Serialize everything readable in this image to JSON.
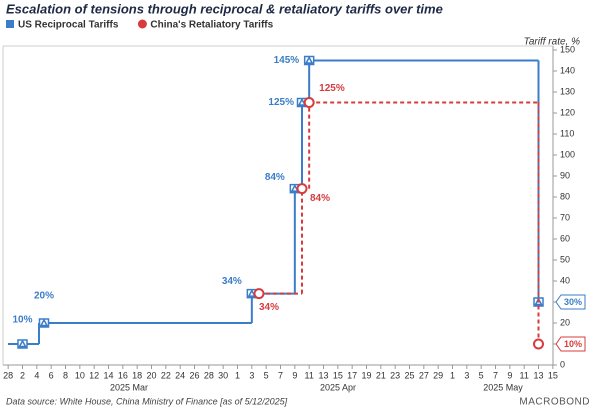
{
  "chart_data": {
    "type": "step",
    "title": "Escalation of tensions through reciprocal & retaliatory tariffs over time",
    "y_axis_label": "Tariff rate, %",
    "source": "Data source: White House, China Ministry of Finance [as of 5/12/2025]",
    "brand": "MACROBOND",
    "month_labels": [
      "2025 Mar",
      "2025 Apr",
      "2025 May"
    ],
    "xlim": [
      "2025-02-27",
      "2025-05-16"
    ],
    "xticks": [
      {
        "value": "2025-02-28",
        "label": "28"
      },
      {
        "value": "2025-03-02",
        "label": "2"
      },
      {
        "value": "2025-03-04",
        "label": "4"
      },
      {
        "value": "2025-03-06",
        "label": "6"
      },
      {
        "value": "2025-03-08",
        "label": "8"
      },
      {
        "value": "2025-03-10",
        "label": "10"
      },
      {
        "value": "2025-03-12",
        "label": "12"
      },
      {
        "value": "2025-03-14",
        "label": "14"
      },
      {
        "value": "2025-03-16",
        "label": "16"
      },
      {
        "value": "2025-03-18",
        "label": "18"
      },
      {
        "value": "2025-03-20",
        "label": "20"
      },
      {
        "value": "2025-03-22",
        "label": "22"
      },
      {
        "value": "2025-03-24",
        "label": "24"
      },
      {
        "value": "2025-03-26",
        "label": "26"
      },
      {
        "value": "2025-03-28",
        "label": "28"
      },
      {
        "value": "2025-03-30",
        "label": "30"
      },
      {
        "value": "2025-04-01",
        "label": "1"
      },
      {
        "value": "2025-04-03",
        "label": "3"
      },
      {
        "value": "2025-04-05",
        "label": "5"
      },
      {
        "value": "2025-04-07",
        "label": "7"
      },
      {
        "value": "2025-04-09",
        "label": "9"
      },
      {
        "value": "2025-04-11",
        "label": "11"
      },
      {
        "value": "2025-04-13",
        "label": "13"
      },
      {
        "value": "2025-04-15",
        "label": "15"
      },
      {
        "value": "2025-04-17",
        "label": "17"
      },
      {
        "value": "2025-04-19",
        "label": "19"
      },
      {
        "value": "2025-04-21",
        "label": "21"
      },
      {
        "value": "2025-04-23",
        "label": "23"
      },
      {
        "value": "2025-04-25",
        "label": "25"
      },
      {
        "value": "2025-04-27",
        "label": "27"
      },
      {
        "value": "2025-04-29",
        "label": "29"
      },
      {
        "value": "2025-05-01",
        "label": "1"
      },
      {
        "value": "2025-05-03",
        "label": "3"
      },
      {
        "value": "2025-05-05",
        "label": "5"
      },
      {
        "value": "2025-05-07",
        "label": "7"
      },
      {
        "value": "2025-05-09",
        "label": "9"
      },
      {
        "value": "2025-05-11",
        "label": "11"
      },
      {
        "value": "2025-05-13",
        "label": "13"
      },
      {
        "value": "2025-05-15",
        "label": "15"
      }
    ],
    "ylim": [
      0,
      150
    ],
    "yticks": [
      0,
      10,
      20,
      30,
      40,
      50,
      60,
      70,
      80,
      90,
      100,
      110,
      120,
      130,
      140,
      150
    ],
    "series": [
      {
        "name": "US Reciprocal Tariffs",
        "color": "#3b7dc8",
        "marker": "triangle",
        "dashed": false,
        "x": [
          "2025-03-02",
          "2025-03-05",
          "2025-04-03",
          "2025-04-09",
          "2025-04-10",
          "2025-04-11",
          "2025-05-13"
        ],
        "values": [
          10,
          20,
          34,
          84,
          125,
          145,
          30
        ],
        "value_labels": [
          "10%",
          "20%",
          "34%",
          "84%",
          "125%",
          "145%",
          "30%"
        ]
      },
      {
        "name": "China's Retaliatory Tariffs",
        "color": "#d63c3e",
        "marker": "circle",
        "dashed": true,
        "x": [
          "2025-04-04",
          "2025-04-10",
          "2025-04-11",
          "2025-05-13"
        ],
        "values": [
          34,
          84,
          125,
          10
        ],
        "value_labels": [
          "34%",
          "84%",
          "125%",
          "10%"
        ]
      }
    ]
  }
}
